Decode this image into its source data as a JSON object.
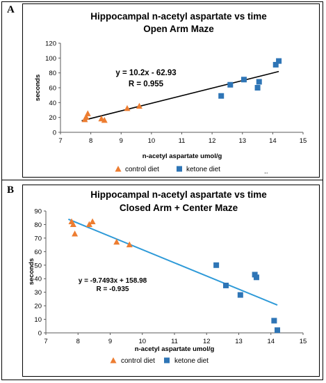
{
  "panels": [
    {
      "label": "A"
    },
    {
      "label": "B"
    }
  ],
  "colors": {
    "control": "#ED7D31",
    "ketone": "#2E75B6",
    "trend_a": "#000000",
    "trend_b": "#2E9AD8"
  },
  "chart_data": [
    {
      "type": "scatter",
      "title": "Hippocampal n-acetyl aspartate vs time",
      "subtitle": "Open Arm Maze",
      "xlabel": "n-acetyl aspartate umol/g",
      "ylabel": "seconds",
      "xlim": [
        7,
        15
      ],
      "ylim": [
        0,
        120
      ],
      "xticks": [
        7,
        8,
        9,
        10,
        11,
        12,
        13,
        14,
        15
      ],
      "yticks": [
        0,
        20,
        40,
        60,
        80,
        100,
        120
      ],
      "grid": false,
      "legend_position": "bottom",
      "series": [
        {
          "name": "control diet",
          "marker": "triangle",
          "points": [
            [
              7.8,
              17
            ],
            [
              7.85,
              20
            ],
            [
              7.9,
              25
            ],
            [
              8.35,
              18
            ],
            [
              8.45,
              16
            ],
            [
              9.2,
              32
            ],
            [
              9.6,
              35
            ]
          ]
        },
        {
          "name": "ketone diet",
          "marker": "square",
          "points": [
            [
              12.3,
              49
            ],
            [
              12.6,
              64
            ],
            [
              13.05,
              71
            ],
            [
              13.5,
              60
            ],
            [
              13.55,
              68
            ],
            [
              14.1,
              91
            ],
            [
              14.2,
              96
            ]
          ]
        }
      ],
      "trendline": {
        "slope": 10.2,
        "intercept": -62.93,
        "x_range": [
          7.7,
          14.2
        ]
      },
      "equation": "y = 10.2x - 62.93",
      "r_value": "R = 0.955",
      "stray_mark": ".."
    },
    {
      "type": "scatter",
      "title": "Hippocampal n-acetyl aspartate vs time",
      "subtitle": "Closed Arm + Center Maze",
      "xlabel": "n-acetyl aspartate umol/g",
      "ylabel": "seconds",
      "xlim": [
        7,
        15
      ],
      "ylim": [
        0,
        90
      ],
      "xticks": [
        7,
        8,
        9,
        10,
        11,
        12,
        13,
        14,
        15
      ],
      "yticks": [
        0,
        10,
        20,
        30,
        40,
        50,
        60,
        70,
        80,
        90
      ],
      "grid": false,
      "legend_position": "bottom",
      "series": [
        {
          "name": "control diet",
          "marker": "triangle",
          "points": [
            [
              7.8,
              82
            ],
            [
              7.85,
              80
            ],
            [
              7.9,
              73
            ],
            [
              8.35,
              80
            ],
            [
              8.45,
              82
            ],
            [
              9.2,
              67
            ],
            [
              9.6,
              65
            ]
          ]
        },
        {
          "name": "ketone diet",
          "marker": "square",
          "points": [
            [
              12.3,
              50
            ],
            [
              12.6,
              35
            ],
            [
              13.05,
              28
            ],
            [
              13.5,
              43
            ],
            [
              13.55,
              41
            ],
            [
              14.1,
              9
            ],
            [
              14.2,
              2
            ]
          ]
        }
      ],
      "trendline": {
        "slope": -9.7493,
        "intercept": 158.98,
        "x_range": [
          7.7,
          14.2
        ]
      },
      "equation": "y = -9.7493x + 158.98",
      "r_value": "R = -0.935"
    }
  ]
}
